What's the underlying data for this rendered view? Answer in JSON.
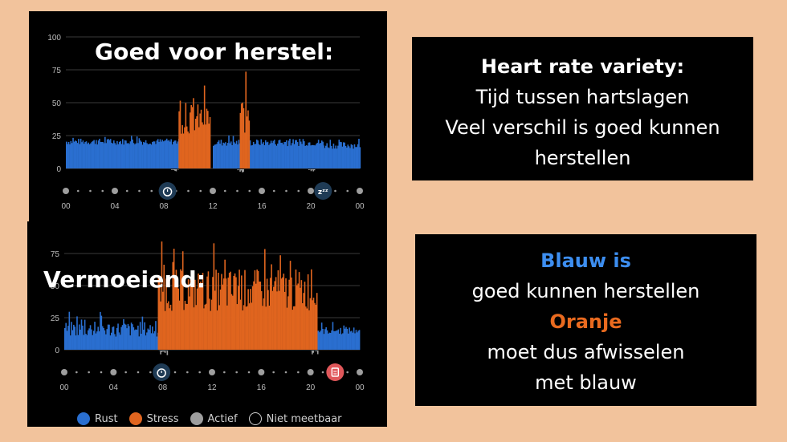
{
  "panels": {
    "top_overlay": "Goed voor herstel:",
    "bottom_overlay": "Vermoeiend:"
  },
  "info_box_1": {
    "heading": "Heart rate variety:",
    "lines": [
      "Tijd tussen hartslagen",
      "Veel verschil is goed kunnen",
      "herstellen"
    ]
  },
  "info_box_2": {
    "blue_label": "Blauw is",
    "line1": "goed kunnen herstellen",
    "orange_label": "Oranje",
    "line2": "moet dus afwisselen",
    "line3": "met blauw"
  },
  "legend": {
    "items": [
      {
        "label": "Rust",
        "color": "#2a6fd0"
      },
      {
        "label": "Stress",
        "color": "#e0651f"
      },
      {
        "label": "Actief",
        "color": "#9e9e9e"
      },
      {
        "label": "Niet meetbaar",
        "color": "outline"
      }
    ]
  },
  "colors": {
    "rust": "#2a6fd0",
    "stress": "#e0651f",
    "actief": "#9e9e9e",
    "grid": "#3a3a3a",
    "axis_text": "#bdbdbd"
  },
  "icons": {
    "top_chart": [
      "alarm-clock-icon",
      "sleep-zzz-icon"
    ],
    "bottom_chart": [
      "alarm-clock-icon",
      "clipboard-icon"
    ]
  },
  "chart_data": [
    {
      "type": "bar",
      "yticks": [
        0,
        25,
        50,
        75,
        100
      ],
      "ylim": [
        0,
        100
      ],
      "xticks": [
        "00",
        "04",
        "08",
        "12",
        "16",
        "20",
        "00"
      ],
      "series": [
        {
          "name": "Rust",
          "segments": [
            [
              0,
              9.2,
              18,
              26
            ],
            [
              12.0,
              14.2,
              17,
              26
            ],
            [
              15.0,
              21.0,
              17,
              26
            ],
            [
              21.0,
              24.0,
              15,
              24
            ]
          ]
        },
        {
          "name": "Stress",
          "segments": [
            [
              9.2,
              11.8,
              26,
              65
            ],
            [
              14.2,
              15.0,
              26,
              74
            ]
          ]
        },
        {
          "name": "Actief",
          "segments": [
            [
              8.6,
              9.2,
              0,
              6
            ],
            [
              14.0,
              14.5,
              0,
              6
            ],
            [
              19.8,
              20.3,
              0,
              6
            ]
          ]
        }
      ]
    },
    {
      "type": "bar",
      "yticks": [
        0,
        25,
        50,
        75
      ],
      "ylim": [
        0,
        100
      ],
      "xticks": [
        "00",
        "04",
        "08",
        "12",
        "16",
        "20",
        "00"
      ],
      "series": [
        {
          "name": "Rust",
          "segments": [
            [
              0,
              7.6,
              10,
              30
            ],
            [
              20.5,
              24.0,
              12,
              22
            ]
          ]
        },
        {
          "name": "Stress",
          "segments": [
            [
              7.6,
              20.5,
              30,
              85
            ]
          ]
        },
        {
          "name": "Actief",
          "segments": [
            [
              7.6,
              8.4,
              0,
              8
            ],
            [
              20.0,
              20.6,
              0,
              8
            ]
          ]
        }
      ]
    }
  ]
}
